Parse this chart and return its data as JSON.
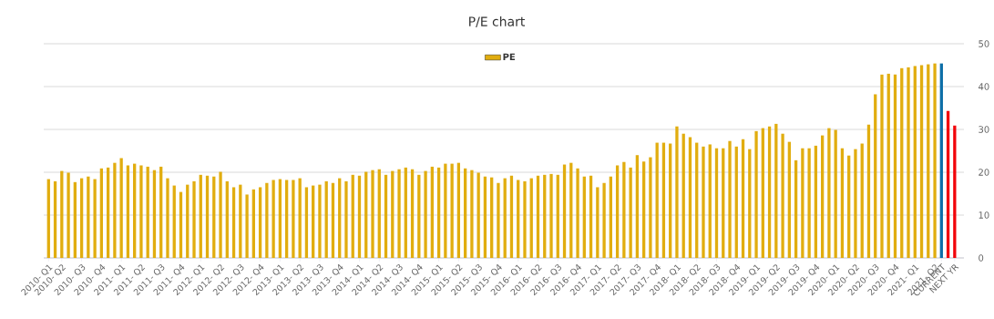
{
  "chart_data": {
    "type": "bar",
    "title": "P/E chart",
    "categories": [
      "2010- Q1",
      null,
      "2010- Q2",
      null,
      null,
      "2010- Q3",
      null,
      null,
      "2010- Q4",
      null,
      null,
      "2011- Q1",
      null,
      null,
      "2011- Q2",
      null,
      null,
      "2011- Q3",
      null,
      null,
      "2011- Q4",
      null,
      null,
      "2012- Q1",
      null,
      null,
      "2012- Q2",
      null,
      null,
      "2012- Q3",
      null,
      null,
      "2012- Q4",
      null,
      null,
      "2013- Q1",
      null,
      null,
      "2013- Q2",
      null,
      null,
      "2013- Q3",
      null,
      null,
      "2013- Q4",
      null,
      null,
      "2014- Q1",
      null,
      null,
      "2014- Q2",
      null,
      null,
      "2014- Q3",
      null,
      null,
      "2014- Q4",
      null,
      null,
      "2015- Q1",
      null,
      null,
      "2015- Q2",
      null,
      null,
      "2015- Q3",
      null,
      null,
      "2015- Q4",
      null,
      null,
      "2016- Q1",
      null,
      null,
      "2016- Q2",
      null,
      null,
      "2016- Q3",
      null,
      null,
      "2016- Q4",
      null,
      null,
      "2017- Q1",
      null,
      null,
      "2017- Q2",
      null,
      null,
      "2017- Q3",
      null,
      null,
      "2017- Q4",
      null,
      null,
      "2018- Q1",
      null,
      null,
      "2018- Q2",
      null,
      null,
      "2018- Q3",
      null,
      null,
      "2018- Q4",
      null,
      null,
      "2019- Q1",
      null,
      null,
      "2019- Q2",
      null,
      null,
      "2019- Q3",
      null,
      null,
      "2019- Q4",
      null,
      null,
      "2020- Q1",
      null,
      null,
      "2020- Q2",
      null,
      null,
      "2020- Q3",
      null,
      null,
      "2020- Q4",
      null,
      null,
      "2021- Q1",
      null,
      null,
      "2021- Q2",
      "CURRENT",
      null,
      "NEXT YR"
    ],
    "series": [
      {
        "name": "PE",
        "color": "#e1ad0f",
        "colors": [
          "#e1ad0f",
          "#e1ad0f",
          "#e1ad0f",
          "#e1ad0f",
          "#e1ad0f",
          "#e1ad0f",
          "#e1ad0f",
          "#e1ad0f",
          "#e1ad0f",
          "#e1ad0f",
          "#e1ad0f",
          "#e1ad0f",
          "#e1ad0f",
          "#e1ad0f",
          "#e1ad0f",
          "#e1ad0f",
          "#e1ad0f",
          "#e1ad0f",
          "#e1ad0f",
          "#e1ad0f",
          "#e1ad0f",
          "#e1ad0f",
          "#e1ad0f",
          "#e1ad0f",
          "#e1ad0f",
          "#e1ad0f",
          "#e1ad0f",
          "#e1ad0f",
          "#e1ad0f",
          "#e1ad0f",
          "#e1ad0f",
          "#e1ad0f",
          "#e1ad0f",
          "#e1ad0f",
          "#e1ad0f",
          "#e1ad0f",
          "#e1ad0f",
          "#e1ad0f",
          "#e1ad0f",
          "#e1ad0f",
          "#e1ad0f",
          "#e1ad0f",
          "#e1ad0f",
          "#e1ad0f",
          "#e1ad0f",
          "#e1ad0f",
          "#e1ad0f",
          "#e1ad0f",
          "#e1ad0f",
          "#e1ad0f",
          "#e1ad0f",
          "#e1ad0f",
          "#e1ad0f",
          "#e1ad0f",
          "#e1ad0f",
          "#e1ad0f",
          "#e1ad0f",
          "#e1ad0f",
          "#e1ad0f",
          "#e1ad0f",
          "#e1ad0f",
          "#e1ad0f",
          "#e1ad0f",
          "#e1ad0f",
          "#e1ad0f",
          "#e1ad0f",
          "#e1ad0f",
          "#e1ad0f",
          "#e1ad0f",
          "#e1ad0f",
          "#e1ad0f",
          "#e1ad0f",
          "#e1ad0f",
          "#e1ad0f",
          "#e1ad0f",
          "#e1ad0f",
          "#e1ad0f",
          "#e1ad0f",
          "#e1ad0f",
          "#e1ad0f",
          "#e1ad0f",
          "#e1ad0f",
          "#e1ad0f",
          "#e1ad0f",
          "#e1ad0f",
          "#e1ad0f",
          "#e1ad0f",
          "#e1ad0f",
          "#e1ad0f",
          "#e1ad0f",
          "#e1ad0f",
          "#e1ad0f",
          "#e1ad0f",
          "#e1ad0f",
          "#e1ad0f",
          "#e1ad0f",
          "#e1ad0f",
          "#e1ad0f",
          "#e1ad0f",
          "#e1ad0f",
          "#e1ad0f",
          "#e1ad0f",
          "#e1ad0f",
          "#e1ad0f",
          "#e1ad0f",
          "#e1ad0f",
          "#e1ad0f",
          "#e1ad0f",
          "#e1ad0f",
          "#e1ad0f",
          "#e1ad0f",
          "#e1ad0f",
          "#e1ad0f",
          "#e1ad0f",
          "#e1ad0f",
          "#e1ad0f",
          "#e1ad0f",
          "#e1ad0f",
          "#e1ad0f",
          "#e1ad0f",
          "#e1ad0f",
          "#e1ad0f",
          "#e1ad0f",
          "#e1ad0f",
          "#e1ad0f",
          "#e1ad0f",
          "#e1ad0f",
          "#e1ad0f",
          "#e1ad0f",
          "#e1ad0f",
          "#e1ad0f",
          "#e1ad0f",
          "#e1ad0f",
          "#e1ad0f",
          "#e1ad0f",
          "#0e6fa8",
          "#f2040a",
          "#f2040a"
        ],
        "values": [
          18.4,
          17.9,
          20.3,
          19.9,
          17.7,
          18.6,
          19.0,
          18.4,
          20.9,
          21.1,
          22.2,
          23.3,
          21.6,
          22.0,
          21.6,
          21.3,
          20.5,
          21.3,
          18.6,
          16.9,
          15.4,
          17.1,
          17.9,
          19.4,
          19.2,
          19.0,
          20.1,
          17.9,
          16.5,
          17.1,
          14.8,
          16.0,
          16.5,
          17.5,
          18.2,
          18.4,
          18.2,
          18.2,
          18.6,
          16.5,
          16.9,
          17.1,
          17.9,
          17.5,
          18.6,
          17.9,
          19.4,
          19.2,
          20.1,
          20.5,
          20.7,
          19.4,
          20.3,
          20.7,
          21.1,
          20.7,
          19.4,
          20.3,
          21.3,
          21.1,
          22.0,
          22.0,
          22.2,
          20.9,
          20.5,
          19.9,
          19.0,
          18.8,
          17.5,
          18.6,
          19.2,
          18.2,
          17.9,
          18.6,
          19.2,
          19.4,
          19.6,
          19.4,
          21.8,
          22.2,
          20.9,
          19.0,
          19.2,
          16.5,
          17.5,
          19.0,
          21.6,
          22.4,
          21.1,
          24.0,
          22.5,
          23.5,
          26.9,
          26.9,
          26.7,
          30.7,
          29.0,
          28.2,
          26.9,
          26.0,
          26.5,
          25.6,
          25.6,
          27.3,
          26.0,
          27.7,
          25.4,
          29.6,
          30.3,
          30.7,
          31.3,
          29.0,
          27.1,
          22.8,
          25.6,
          25.6,
          26.2,
          28.6,
          30.3,
          29.9,
          25.6,
          23.9,
          25.4,
          26.7,
          31.1,
          38.2,
          42.8,
          43.0,
          42.8,
          44.3,
          44.5,
          44.8,
          45.0,
          45.2,
          45.4,
          45.4,
          34.3,
          30.9
        ]
      }
    ],
    "ylim": [
      0,
      50
    ],
    "yticks": [
      0,
      10,
      20,
      30,
      40,
      50
    ],
    "grid": "y",
    "legend": "top"
  }
}
